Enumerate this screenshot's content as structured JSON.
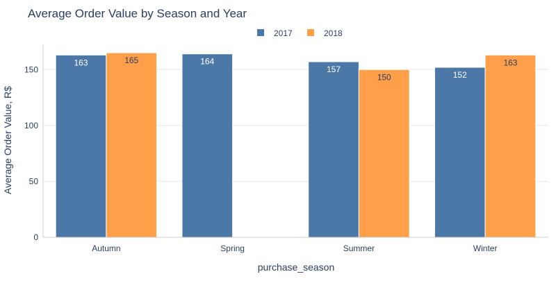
{
  "chart_data": {
    "type": "bar",
    "title": "Average Order Value by Season and Year",
    "xlabel": "purchase_season",
    "ylabel": "Average Order Value, R$",
    "categories": [
      "Autumn",
      "Spring",
      "Summer",
      "Winter"
    ],
    "series": [
      {
        "name": "2017",
        "color": "#4c78a8",
        "values": [
          163,
          164,
          157,
          152
        ],
        "labels": [
          "163",
          "164",
          "157",
          "152"
        ]
      },
      {
        "name": "2018",
        "color": "#ff9f4a",
        "values": [
          165,
          null,
          150,
          163
        ],
        "labels": [
          "165",
          null,
          "150",
          "163"
        ]
      }
    ],
    "ylim": [
      0,
      172.5
    ],
    "yticks": [
      0,
      50,
      100,
      150
    ],
    "ytick_labels": [
      "0",
      "50",
      "100",
      "150"
    ],
    "grid": true,
    "legend": "top-center"
  }
}
